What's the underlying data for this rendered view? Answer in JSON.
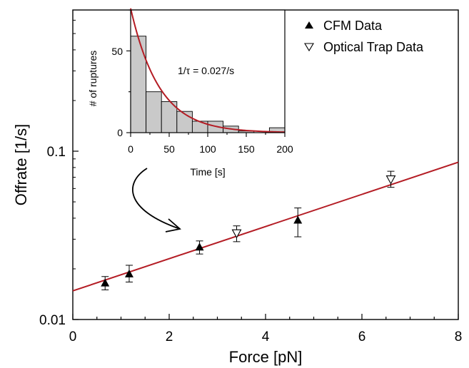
{
  "colors": {
    "fit_line": "#b41c24",
    "bar_fill": "#c9c9c9",
    "axis": "#000000"
  },
  "chart_data": [
    {
      "type": "scatter",
      "xlabel": "Force [pN]",
      "ylabel": "Offrate [1/s]",
      "xlim": [
        0,
        8
      ],
      "ylim": [
        0.01,
        0.65
      ],
      "yscale": "log",
      "x_tick_labels": [
        "0",
        "2",
        "4",
        "6",
        "8"
      ],
      "y_tick_labels": [
        "0.01",
        "0.1"
      ],
      "legend": {
        "position": "top-right",
        "entries": [
          {
            "label": "CFM Data",
            "marker": "filled-triangle-up"
          },
          {
            "label": "Optical Trap Data",
            "marker": "open-triangle-down"
          }
        ]
      },
      "series": [
        {
          "name": "CFM Data",
          "marker": "filled-triangle-up",
          "points": [
            {
              "x": 0.67,
              "y": 0.0165,
              "y_err_low": 0.015,
              "y_err_high": 0.018
            },
            {
              "x": 1.17,
              "y": 0.0187,
              "y_err_low": 0.0167,
              "y_err_high": 0.021
            },
            {
              "x": 2.63,
              "y": 0.027,
              "y_err_low": 0.0245,
              "y_err_high": 0.0293
            },
            {
              "x": 4.67,
              "y": 0.039,
              "y_err_low": 0.031,
              "y_err_high": 0.046
            }
          ]
        },
        {
          "name": "Optical Trap Data",
          "marker": "open-triangle-down",
          "points": [
            {
              "x": 3.4,
              "y": 0.0325,
              "y_err_low": 0.029,
              "y_err_high": 0.036
            },
            {
              "x": 6.6,
              "y": 0.068,
              "y_err_low": 0.061,
              "y_err_high": 0.076
            }
          ]
        }
      ],
      "fit": {
        "type": "exponential",
        "x": [
          0,
          8
        ],
        "y": [
          0.0148,
          0.086
        ]
      }
    },
    {
      "type": "bar",
      "inset": true,
      "xlabel": "Time [s]",
      "ylabel": "# of ruptures",
      "xlim": [
        0,
        200
      ],
      "ylim": [
        0,
        75
      ],
      "x_tick_labels": [
        "0",
        "50",
        "100",
        "150",
        "200"
      ],
      "y_tick_labels": [
        "0",
        "50"
      ],
      "bins": [
        {
          "start": 0,
          "end": 20,
          "count": 59
        },
        {
          "start": 20,
          "end": 40,
          "count": 25
        },
        {
          "start": 40,
          "end": 60,
          "count": 19
        },
        {
          "start": 60,
          "end": 80,
          "count": 13
        },
        {
          "start": 80,
          "end": 100,
          "count": 7
        },
        {
          "start": 100,
          "end": 120,
          "count": 7
        },
        {
          "start": 120,
          "end": 140,
          "count": 4
        },
        {
          "start": 140,
          "end": 160,
          "count": 1
        },
        {
          "start": 160,
          "end": 180,
          "count": 0
        },
        {
          "start": 180,
          "end": 200,
          "count": 3
        }
      ],
      "fit": {
        "type": "exponential",
        "amplitude": 76,
        "rate": 0.027
      },
      "annotation": "1/τ = 0.027/s"
    }
  ]
}
